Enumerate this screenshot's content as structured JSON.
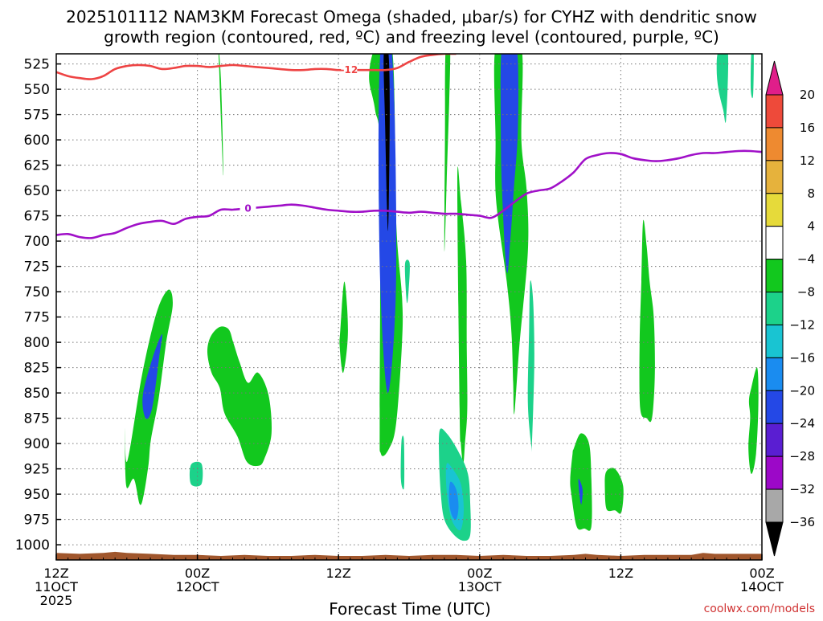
{
  "chart_data": {
    "type": "heatmap",
    "title_line1": "2025101112 NAM3KM Forecast Omega (shaded, μbar/s) for CYHZ with dendritic snow",
    "title_line2": "growth region (contoured, red, ºC) and freezing level (contoured, purple, ºC)",
    "xlabel": "Forecast Time (UTC)",
    "ylabel": "",
    "credit": "coolwx.com/models",
    "x_unit": "forecast hour from 2025-10-11 12Z",
    "xlim": [
      0,
      60
    ],
    "ylim": [
      1015,
      515
    ],
    "y_scale": "pressure (hPa), increasing downward",
    "grid": true,
    "x_ticks": [
      {
        "hour": 0,
        "line1": "12Z",
        "line2": "11OCT",
        "line3": "2025"
      },
      {
        "hour": 12,
        "line1": "00Z",
        "line2": "12OCT",
        "line3": ""
      },
      {
        "hour": 24,
        "line1": "12Z",
        "line2": "",
        "line3": ""
      },
      {
        "hour": 36,
        "line1": "00Z",
        "line2": "13OCT",
        "line3": ""
      },
      {
        "hour": 48,
        "line1": "12Z",
        "line2": "",
        "line3": ""
      },
      {
        "hour": 60,
        "line1": "00Z",
        "line2": "14OCT",
        "line3": ""
      }
    ],
    "y_ticks": [
      525,
      550,
      575,
      600,
      625,
      650,
      675,
      700,
      725,
      750,
      775,
      800,
      825,
      850,
      875,
      900,
      925,
      950,
      975,
      1000
    ],
    "colorbar": {
      "labels": [
        "20",
        "16",
        "12",
        "8",
        "4",
        "−4",
        "−8",
        "−12",
        "−16",
        "−20",
        "−24",
        "−28",
        "−32",
        "−36"
      ],
      "boundaries": [
        20,
        16,
        12,
        8,
        4,
        -4,
        -8,
        -12,
        -16,
        -20,
        -24,
        -28,
        -32,
        -36
      ],
      "colors": [
        "#e8386a",
        "#ee4a3a",
        "#ee8a30",
        "#e6b23c",
        "#e6da3a",
        "#ffffff",
        "#12c81e",
        "#1cd28a",
        "#19c4d2",
        "#1a8cf0",
        "#2448e6",
        "#5a1ed2",
        "#9c08c8",
        "#a8a8a8",
        "#000000"
      ],
      "top_arrow_color": "#e01e8a",
      "bottom_arrow_color": "#000000"
    },
    "series": [
      {
        "name": "-12",
        "color": "#ee4444",
        "hours": [
          0,
          1,
          2,
          3,
          4,
          5,
          6,
          7,
          8,
          9,
          10,
          11,
          12,
          13,
          14,
          15,
          16,
          17,
          18,
          19,
          20,
          21,
          22,
          23,
          24,
          25,
          26,
          27,
          28,
          29,
          30,
          31,
          32,
          33,
          34
        ],
        "values": [
          533,
          537,
          539,
          540,
          537,
          530,
          527,
          526,
          527,
          530,
          529,
          527,
          527,
          528,
          527,
          526,
          527,
          528,
          529,
          530,
          531,
          531,
          530,
          530,
          531,
          531,
          531,
          531,
          531,
          529,
          523,
          518,
          516,
          515,
          515
        ],
        "label_hour": 24.9,
        "label_text": "-12"
      },
      {
        "name": "0",
        "color": "#a010c8",
        "hours": [
          0,
          1,
          2,
          3,
          4,
          5,
          6,
          7,
          8,
          9,
          10,
          11,
          12,
          13,
          14,
          15,
          16,
          17,
          18,
          19,
          20,
          21,
          22,
          23,
          24,
          25,
          26,
          27,
          28,
          29,
          30,
          31,
          32,
          33,
          34,
          35,
          36,
          37,
          38,
          39,
          40,
          41,
          42,
          43,
          44,
          45,
          46,
          47,
          48,
          49,
          50,
          51,
          52,
          53,
          54,
          55,
          56,
          57,
          58,
          59,
          60
        ],
        "values": [
          694,
          693,
          696,
          697,
          694,
          692,
          687,
          683,
          681,
          680,
          683,
          678,
          676,
          675,
          669,
          669,
          668,
          667,
          666,
          665,
          664,
          665,
          667,
          669,
          670,
          671,
          671,
          670,
          670,
          671,
          672,
          671,
          672,
          673,
          673,
          674,
          675,
          677,
          670,
          661,
          653,
          650,
          648,
          641,
          632,
          619,
          615,
          613,
          614,
          618,
          620,
          621,
          620,
          618,
          615,
          613,
          613,
          612,
          611,
          611,
          612
        ],
        "label_hour": 16.3,
        "label_text": "0"
      }
    ],
    "shaded_regions": [
      {
        "level": 6,
        "hours": [
          13.85,
          14.0,
          14.15,
          14.2,
          14.0,
          13.85,
          13.8
        ],
        "pressures": [
          515,
          540,
          600,
          635,
          580,
          530,
          515
        ]
      },
      {
        "level": 6,
        "hours": [
          6.05,
          7.3,
          8.55,
          9.55,
          9.9,
          9.35,
          8.7,
          8.05,
          7.85,
          7.45,
          7.1,
          6.6,
          5.95,
          5.85
        ],
        "pressures": [
          917,
          832,
          770,
          748,
          763,
          800,
          856,
          896,
          920,
          950,
          960,
          935,
          942,
          885
        ]
      },
      {
        "level": 10,
        "hours": [
          7.35,
          8.2,
          9.0,
          8.75,
          8.15,
          7.6
        ],
        "pressures": [
          853,
          815,
          792,
          815,
          865,
          875
        ]
      },
      {
        "level": 6,
        "hours": [
          12.85,
          13.1,
          13.85,
          14.65,
          15.05,
          15.6,
          16.3,
          17.15,
          18.05,
          18.3,
          17.7,
          17.2,
          16.2,
          15.4,
          14.3,
          13.9,
          13.2
        ],
        "pressures": [
          810,
          795,
          785,
          787,
          800,
          820,
          840,
          830,
          852,
          890,
          915,
          922,
          918,
          893,
          870,
          845,
          830
        ]
      },
      {
        "level": 6,
        "hours": [
          26.9,
          27.4,
          28.6,
          28.9,
          29.4,
          29.4,
          28.9,
          28.3,
          27.6,
          27.5,
          27.55,
          27.1,
          26.6
        ],
        "pressures": [
          515,
          515,
          515,
          680,
          755,
          800,
          880,
          905,
          910,
          870,
          620,
          570,
          540
        ]
      },
      {
        "level": 10,
        "hours": [
          27.55,
          28.05,
          28.55,
          28.85,
          28.85,
          28.2,
          27.6,
          27.4
        ],
        "pressures": [
          515,
          515,
          515,
          620,
          760,
          850,
          760,
          620
        ]
      },
      {
        "level": 14,
        "hours": [
          27.85,
          28.25,
          28.35,
          28.2,
          27.95
        ],
        "pressures": [
          515,
          515,
          580,
          690,
          580
        ]
      },
      {
        "level": 6,
        "hours": [
          24.15,
          24.5,
          24.8,
          24.4,
          24.1
        ],
        "pressures": [
          788,
          740,
          790,
          830,
          805
        ]
      },
      {
        "level": 6,
        "hours": [
          33.1,
          33.5,
          33.2,
          33.0,
          33.05
        ],
        "pressures": [
          512,
          512,
          640,
          710,
          600
        ]
      },
      {
        "level": 6,
        "hours": [
          34.1,
          34.4,
          34.85,
          34.9,
          34.95,
          34.75,
          34.6,
          34.4,
          34.3
        ],
        "pressures": [
          640,
          660,
          720,
          800,
          865,
          900,
          920,
          900,
          870
        ]
      },
      {
        "level": 6,
        "hours": [
          37.3,
          38.4,
          39.6,
          39.55,
          40.0,
          40.1,
          39.4,
          38.95,
          38.85,
          38.7,
          38.3,
          37.4,
          37.35
        ],
        "pressures": [
          513,
          513,
          513,
          600,
          650,
          710,
          800,
          870,
          840,
          790,
          740,
          660,
          600
        ]
      },
      {
        "level": 10,
        "hours": [
          37.85,
          38.5,
          39.2,
          39.25,
          38.9,
          38.6,
          38.3,
          37.9,
          37.8
        ],
        "pressures": [
          513,
          513,
          513,
          590,
          650,
          700,
          730,
          650,
          590
        ]
      },
      {
        "level": 6,
        "hours": [
          44.0,
          44.6,
          45.3,
          45.5,
          45.5,
          44.9,
          44.25,
          43.8,
          43.7,
          43.9
        ],
        "pressures": [
          905,
          890,
          900,
          935,
          982,
          984,
          982,
          950,
          935,
          910
        ]
      },
      {
        "level": 10,
        "hours": [
          44.4,
          44.75,
          44.65,
          44.5
        ],
        "pressures": [
          935,
          945,
          960,
          952
        ]
      },
      {
        "level": 6,
        "hours": [
          46.75,
          47.5,
          48.2,
          48.05,
          47.5,
          46.8,
          46.65
        ],
        "pressures": [
          928,
          925,
          942,
          968,
          966,
          965,
          945
        ]
      },
      {
        "level": 6,
        "hours": [
          49.9,
          50.2,
          50.45,
          50.8,
          50.9,
          50.65,
          50.2,
          49.65,
          49.6,
          49.75
        ],
        "pressures": [
          680,
          705,
          740,
          775,
          830,
          875,
          875,
          865,
          800,
          740
        ]
      },
      {
        "level": 6,
        "hours": [
          59.1,
          59.6,
          59.7,
          59.5,
          59.1,
          58.85,
          59.0,
          58.9
        ],
        "pressures": [
          845,
          825,
          860,
          910,
          930,
          905,
          875,
          858
        ]
      },
      {
        "level": 7,
        "hours": [
          11.45,
          12.35,
          12.35,
          11.45
        ],
        "pressures": [
          921,
          920,
          940,
          940
        ]
      },
      {
        "level": 7,
        "hours": [
          29.65,
          30.05,
          29.95,
          29.8
        ],
        "pressures": [
          723,
          722,
          750,
          760
        ]
      },
      {
        "level": 7,
        "hours": [
          29.35,
          29.55,
          29.6,
          29.55,
          29.3
        ],
        "pressures": [
          898,
          895,
          925,
          945,
          935
        ]
      },
      {
        "level": 7,
        "hours": [
          32.6,
          33.2,
          34.15,
          35.0,
          35.2,
          35.2,
          34.65,
          33.8,
          33.0,
          32.7,
          32.55
        ],
        "pressures": [
          887,
          890,
          907,
          930,
          960,
          990,
          996,
          990,
          975,
          950,
          915
        ]
      },
      {
        "level": 8,
        "hours": [
          33.2,
          33.7,
          34.4,
          34.65,
          34.4,
          33.8,
          33.4,
          33.15
        ],
        "pressures": [
          920,
          925,
          940,
          965,
          985,
          980,
          965,
          940
        ]
      },
      {
        "level": 9,
        "hours": [
          33.5,
          34.0,
          34.2,
          34.0,
          33.6,
          33.4
        ],
        "pressures": [
          938,
          945,
          962,
          975,
          970,
          955
        ]
      },
      {
        "level": 7,
        "hours": [
          40.3,
          40.55,
          40.65,
          40.45,
          40.4,
          40.1,
          40.2
        ],
        "pressures": [
          740,
          760,
          820,
          900,
          903,
          860,
          790
        ]
      },
      {
        "level": 7,
        "hours": [
          56.3,
          57.1,
          56.95,
          56.7,
          56.3,
          56.15
        ],
        "pressures": [
          513,
          513,
          580,
          570,
          550,
          530
        ]
      },
      {
        "level": 7,
        "hours": [
          59.1,
          59.3,
          59.25,
          59.05
        ],
        "pressures": [
          513,
          513,
          556,
          550
        ]
      }
    ],
    "surface": {
      "color": "#a0562c",
      "hours": [
        0,
        2,
        4,
        5,
        6,
        8,
        10,
        12,
        14,
        16,
        18,
        20,
        22,
        24,
        26,
        28,
        30,
        32,
        34,
        36,
        38,
        40,
        42,
        44,
        45,
        46,
        48,
        50,
        52,
        54,
        55,
        56,
        58,
        60
      ],
      "values": [
        1008,
        1009,
        1008,
        1007,
        1008,
        1009,
        1010,
        1010,
        1011,
        1010,
        1011,
        1011,
        1010,
        1011,
        1011,
        1010,
        1011,
        1010,
        1010,
        1011,
        1010,
        1011,
        1011,
        1010,
        1009,
        1010,
        1011,
        1010,
        1010,
        1010,
        1008,
        1009,
        1009,
        1009
      ]
    }
  }
}
